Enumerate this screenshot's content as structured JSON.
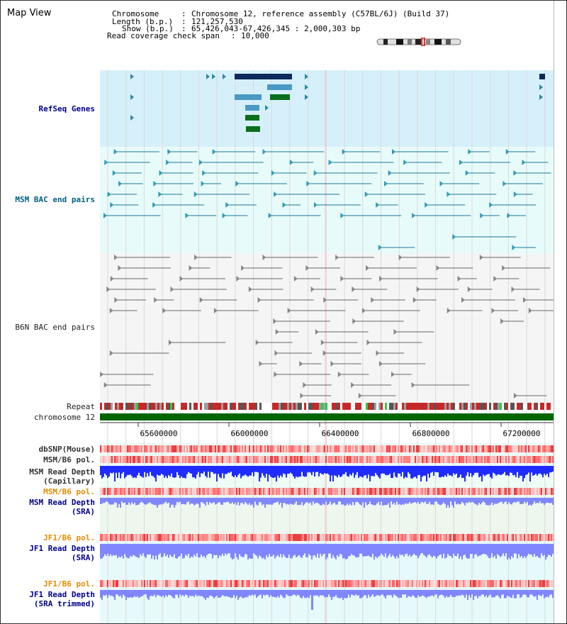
{
  "window": {
    "title": "Map View"
  },
  "header": {
    "chromosome_label": "Chromosome",
    "chromosome_value": "Chromosome 12, reference assembly (C57BL/6J) (Build 37)",
    "length_label": "Length (b.p.)",
    "length_value": "121,257,530",
    "show_label": "Show (b.p.)",
    "show_value": "65,426,043-67,426,345 : 2,000,303 bp",
    "coverage_label": "Read coverage check span",
    "coverage_value": "10,000"
  },
  "tracks": {
    "refseq": "RefSeq Genes",
    "msm_bac": "MSM BAC end pairs",
    "b6n_bac": "B6N BAC end pairs",
    "repeat": "Repeat",
    "chromosome": "chromosome 12",
    "dbsnp": "dbSNP(Mouse)",
    "msm_b6_pol": "MSM/B6 pol.",
    "msm_read_depth_cap_1": "MSM Read Depth",
    "msm_read_depth_cap_2": "(Capillary)",
    "msm_b6_pol_2": "MSM/B6 pol.",
    "msm_read_depth_sra_1": "MSM Read Depth",
    "msm_read_depth_sra_2": "(SRA)",
    "jf1_b6_pol": "JF1/B6 pol.",
    "jf1_read_depth_sra_1": "JF1 Read Depth",
    "jf1_read_depth_sra_2": "(SRA)",
    "jf1_b6_pol_2": "JF1/B6 pol.",
    "jf1_read_depth_trim_1": "JF1 Read Depth",
    "jf1_read_depth_trim_2": "(SRA trimmed)"
  },
  "axis": {
    "ticks": [
      "65600000",
      "66000000",
      "66400000",
      "66800000",
      "67200000"
    ]
  },
  "colors": {
    "refseq_bg": "#d6f0fb",
    "msm_bg": "#e8fbfb",
    "b6n_bg": "#f5f5f5",
    "label_blue": "#00008b",
    "label_teal": "#006080",
    "label_orange": "#e68a00",
    "chrom_green": "#006400",
    "depth_blue": "#1f2bff",
    "depth_light": "#7f86ff"
  }
}
